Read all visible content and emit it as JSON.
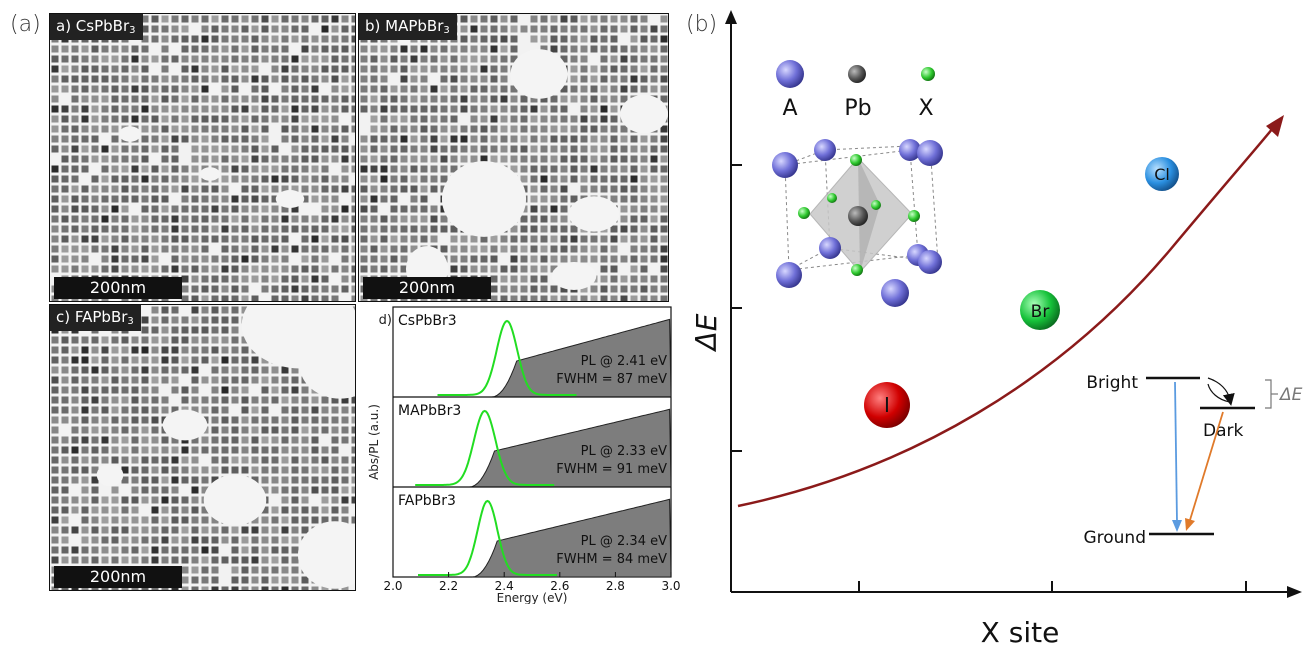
{
  "figure": {
    "panel_a_label": "(a)",
    "panel_b_label": "(b)"
  },
  "tem": [
    {
      "tag": "a) CsPbBr",
      "sub": "3",
      "scalebar": "200nm"
    },
    {
      "tag": "b) MAPbBr",
      "sub": "3",
      "scalebar": "200nm"
    },
    {
      "tag": "c) FAPbBr",
      "sub": "3",
      "scalebar": "200nm"
    }
  ],
  "spectra": {
    "panel_label": "d)",
    "ylabel": "Abs/PL (a.u.)",
    "xlabel": "Energy (eV)",
    "xticks": [
      "2.0",
      "2.2",
      "2.4",
      "2.6",
      "2.8",
      "3.0"
    ],
    "colors": {
      "pl": "#22dd22",
      "abs_fill": "#7d7d7d"
    }
  },
  "chart_data": [
    {
      "type": "line",
      "xlabel": "Energy (eV)",
      "ylabel": "Abs/PL (a.u.)",
      "xlim": [
        2.0,
        3.0
      ],
      "series": [
        {
          "name": "CsPbBr3",
          "pl_peak_ev": 2.41,
          "fwhm_mev": 87,
          "label1": "PL @ 2.41 eV",
          "label2": "FWHM = 87 meV"
        },
        {
          "name": "MAPbBr3",
          "pl_peak_ev": 2.33,
          "fwhm_mev": 91,
          "label1": "PL @ 2.33 eV",
          "label2": "FWHM = 91 meV"
        },
        {
          "name": "FAPbBr3",
          "pl_peak_ev": 2.34,
          "fwhm_mev": 84,
          "label1": "PL @ 2.34 eV",
          "label2": "FWHM = 84 meV"
        }
      ]
    },
    {
      "type": "scatter",
      "xlabel": "X site",
      "ylabel": "ΔE",
      "points": [
        {
          "label": "I",
          "color": "#d40000"
        },
        {
          "label": "Br",
          "color": "#16c23a"
        },
        {
          "label": "Cl",
          "color": "#2a8fe0"
        }
      ],
      "curve_color": "#8b1a1a"
    }
  ],
  "legend": {
    "items": [
      {
        "label": "A",
        "color": "#6a6ad8"
      },
      {
        "label": "Pb",
        "color": "#444444"
      },
      {
        "label": "X",
        "color": "#28c828"
      }
    ]
  },
  "levels": {
    "bright": "Bright",
    "dark": "Dark",
    "ground": "Ground",
    "delta": "ΔE"
  }
}
